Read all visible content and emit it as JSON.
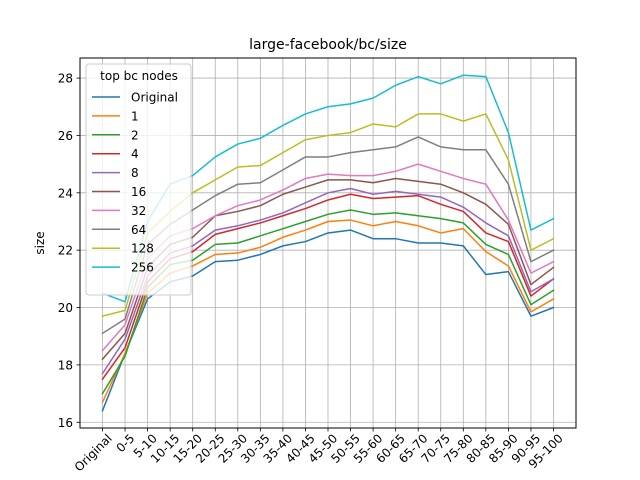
{
  "chart_data": {
    "type": "line",
    "title": "large-facebook/bc/size",
    "xlabel": "",
    "ylabel": "size",
    "ylim": [
      15.8,
      28.7
    ],
    "yticks": [
      16,
      18,
      20,
      22,
      24,
      26,
      28
    ],
    "grid": true,
    "legend": {
      "title": "top bc nodes",
      "placement": "upper-left"
    },
    "categories": [
      "Original",
      "0-5",
      "5-10",
      "10-15",
      "15-20",
      "20-25",
      "25-30",
      "30-35",
      "35-40",
      "40-45",
      "45-50",
      "50-55",
      "55-60",
      "60-65",
      "65-70",
      "70-75",
      "75-80",
      "80-85",
      "85-90",
      "90-95",
      "95-100"
    ],
    "series": [
      {
        "name": "Original",
        "color": "#1f77b4",
        "values": [
          16.4,
          18.4,
          20.3,
          20.9,
          21.1,
          21.6,
          21.65,
          21.85,
          22.15,
          22.3,
          22.6,
          22.7,
          22.4,
          22.4,
          22.25,
          22.25,
          22.15,
          21.15,
          21.25,
          19.7,
          20.0
        ]
      },
      {
        "name": "1",
        "color": "#ff7f0e",
        "values": [
          16.7,
          18.4,
          20.5,
          21.2,
          21.45,
          21.85,
          21.9,
          22.1,
          22.45,
          22.7,
          23.0,
          23.05,
          22.85,
          23.0,
          22.85,
          22.6,
          22.75,
          21.95,
          21.45,
          19.85,
          20.3
        ]
      },
      {
        "name": "2",
        "color": "#2ca02c",
        "values": [
          17.0,
          18.3,
          20.7,
          21.5,
          21.65,
          22.2,
          22.25,
          22.5,
          22.75,
          23.0,
          23.25,
          23.4,
          23.25,
          23.3,
          23.2,
          23.1,
          22.95,
          22.2,
          21.85,
          20.1,
          20.6
        ]
      },
      {
        "name": "4",
        "color": "#d62728",
        "values": [
          17.5,
          18.6,
          20.9,
          21.7,
          21.95,
          22.55,
          22.75,
          22.95,
          23.2,
          23.45,
          23.75,
          23.95,
          23.8,
          23.85,
          23.9,
          23.6,
          23.35,
          22.6,
          22.3,
          20.4,
          21.0
        ]
      },
      {
        "name": "8",
        "color": "#9467bd",
        "values": [
          17.7,
          18.9,
          21.1,
          21.9,
          22.15,
          22.7,
          22.85,
          23.05,
          23.3,
          23.65,
          24.0,
          24.15,
          23.95,
          24.05,
          23.95,
          23.85,
          23.5,
          22.95,
          22.5,
          20.55,
          21.0
        ]
      },
      {
        "name": "16",
        "color": "#8c564b",
        "values": [
          18.2,
          19.1,
          21.4,
          22.2,
          22.45,
          23.2,
          23.35,
          23.55,
          23.95,
          24.2,
          24.45,
          24.45,
          24.35,
          24.5,
          24.4,
          24.3,
          24.0,
          23.6,
          22.9,
          20.8,
          21.4
        ]
      },
      {
        "name": "32",
        "color": "#e377c2",
        "values": [
          18.5,
          19.4,
          21.7,
          22.5,
          22.75,
          23.2,
          23.55,
          23.75,
          24.1,
          24.5,
          24.65,
          24.6,
          24.6,
          24.75,
          25.0,
          24.75,
          24.5,
          24.3,
          23.05,
          21.2,
          21.6
        ]
      },
      {
        "name": "64",
        "color": "#7f7f7f",
        "values": [
          19.1,
          19.6,
          22.2,
          22.9,
          23.4,
          23.9,
          24.3,
          24.35,
          24.8,
          25.25,
          25.25,
          25.4,
          25.5,
          25.6,
          25.95,
          25.6,
          25.5,
          25.5,
          24.3,
          21.6,
          22.0
        ]
      },
      {
        "name": "128",
        "color": "#bcbd22",
        "values": [
          19.7,
          19.9,
          22.6,
          23.35,
          24.0,
          24.45,
          24.9,
          24.95,
          25.4,
          25.85,
          26.0,
          26.1,
          26.4,
          26.3,
          26.75,
          26.75,
          26.5,
          26.75,
          25.15,
          22.0,
          22.4
        ]
      },
      {
        "name": "256",
        "color": "#17becf",
        "values": [
          20.5,
          20.2,
          23.0,
          24.3,
          24.6,
          25.25,
          25.7,
          25.9,
          26.35,
          26.75,
          27.0,
          27.1,
          27.3,
          27.75,
          28.05,
          27.8,
          28.1,
          28.05,
          26.1,
          22.7,
          23.1
        ]
      }
    ]
  }
}
